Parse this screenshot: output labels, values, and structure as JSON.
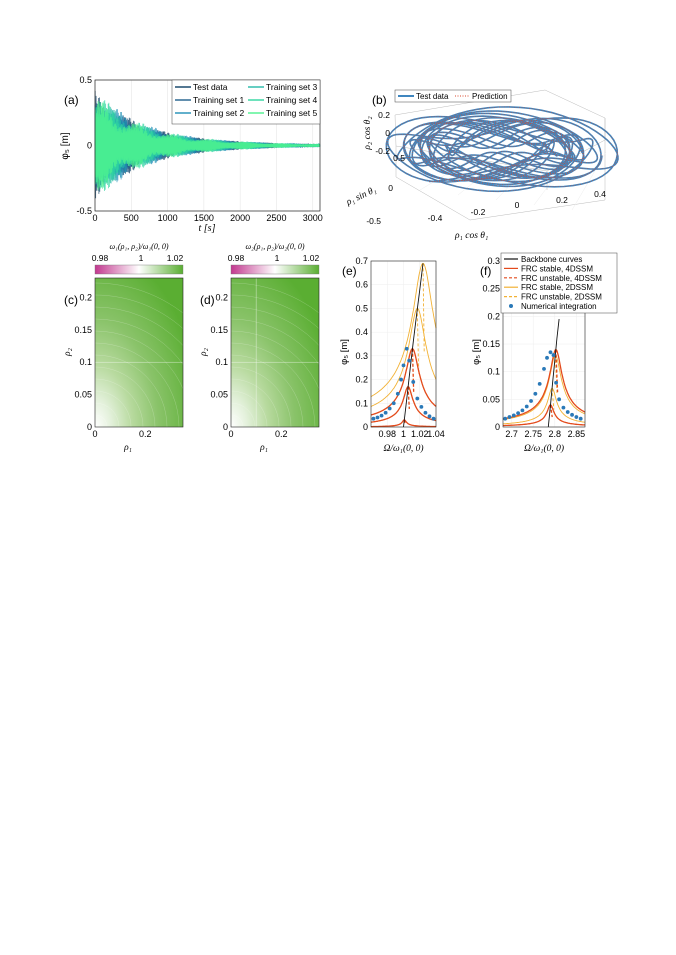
{
  "chart_data": [
    {
      "panel": "(a)",
      "type": "line",
      "ylabel": "φ₅ [m]",
      "xlabel": "t [s]",
      "xlim": [
        0,
        3100
      ],
      "ylim": [
        -0.5,
        0.5
      ],
      "xticks": [
        0,
        500,
        1000,
        1500,
        2000,
        2500,
        3000
      ],
      "yticks": [
        -0.5,
        0,
        0.5
      ],
      "legend": [
        "Test data",
        "Training set 1",
        "Training set 2",
        "Training set 3",
        "Training set 4",
        "Training set 5"
      ],
      "legend_position": "top-right",
      "series": [
        {
          "name": "Test data",
          "color": "#0b3d63",
          "amplitude": 0.42
        },
        {
          "name": "Training set 1",
          "color": "#1f5f8b",
          "amplitude": 0.4
        },
        {
          "name": "Training set 2",
          "color": "#1f8fb5",
          "amplitude": 0.44
        },
        {
          "name": "Training set 3",
          "color": "#25b9a8",
          "amplitude": 0.41
        },
        {
          "name": "Training set 4",
          "color": "#2fd6a0",
          "amplitude": 0.43
        },
        {
          "name": "Training set 5",
          "color": "#4df28f",
          "amplitude": 0.38
        }
      ],
      "envelope": {
        "t": [
          0,
          250,
          500,
          750,
          1000,
          1250,
          1500,
          1750,
          2000,
          2500,
          3000
        ],
        "value": [
          0.45,
          0.31,
          0.22,
          0.155,
          0.11,
          0.08,
          0.06,
          0.045,
          0.035,
          0.02,
          0.012
        ]
      }
    },
    {
      "panel": "(b)",
      "type": "line",
      "zlabel": "ρ₂ cos θ₂",
      "xlabel": "ρ₁ cos θ₁",
      "ylabel": "ρ₁ sin θ₁",
      "xticks": [
        -0.4,
        -0.2,
        0,
        0.2,
        0.4
      ],
      "yticks": [
        -0.5,
        0,
        0.5
      ],
      "zticks": [
        -0.2,
        0,
        0.2
      ],
      "legend": [
        "Test data",
        "Prediction"
      ],
      "legend_position": "top"
    },
    {
      "panel": "(c)",
      "type": "heatmap",
      "colorbar_label": "ω₁(ρ₁, ρ₂)/ω₁(0, 0)",
      "colorbar_ticks": [
        "0.98",
        "1",
        "1.02"
      ],
      "xlabel": "ρ₁",
      "ylabel": "ρ₂",
      "xticks": [
        0,
        0.2
      ],
      "yticks": [
        0,
        0.05,
        0.1,
        0.15,
        0.2
      ],
      "xlim": [
        0,
        0.35
      ],
      "ylim": [
        0,
        0.23
      ]
    },
    {
      "panel": "(d)",
      "type": "heatmap",
      "colorbar_label": "ω₂(ρ₁, ρ₂)/ω₂(0, 0)",
      "colorbar_ticks": [
        "0.98",
        "1",
        "1.02"
      ],
      "xlabel": "ρ₁",
      "ylabel": "ρ₂",
      "xticks": [
        0,
        0.2
      ],
      "yticks": [
        0,
        0.05,
        0.1,
        0.15,
        0.2
      ],
      "xlim": [
        0,
        0.35
      ],
      "ylim": [
        0,
        0.23
      ]
    },
    {
      "panel": "(e)",
      "type": "line",
      "xlabel": "Ω/ω₁(0, 0)",
      "ylabel": "φ₅ [m]",
      "xlim": [
        0.96,
        1.04
      ],
      "ylim": [
        0,
        0.7
      ],
      "xticks": [
        0.98,
        1,
        1.02,
        1.04
      ],
      "xtick_labels": [
        "0.98",
        "1",
        "1.02",
        "1.04"
      ],
      "yticks": [
        0,
        0.1,
        0.2,
        0.3,
        0.4,
        0.5,
        0.6,
        0.7
      ],
      "backbone": {
        "x": [
          1.0,
          1.004,
          1.008,
          1.012,
          1.016,
          1.02,
          1.024
        ],
        "y": [
          0.0,
          0.12,
          0.24,
          0.36,
          0.47,
          0.58,
          0.69
        ]
      },
      "frc_4dssm_peaks": [
        0.33,
        0.17,
        0.03
      ],
      "frc_2dssm_peaks": [
        0.69,
        0.5,
        0.33,
        0.17
      ],
      "numerical_integration": {
        "x": [
          0.963,
          0.968,
          0.973,
          0.978,
          0.983,
          0.988,
          0.993,
          0.997,
          1.0,
          1.004,
          1.007,
          1.012,
          1.017,
          1.022,
          1.027,
          1.032,
          1.037
        ],
        "y": [
          0.035,
          0.04,
          0.048,
          0.06,
          0.078,
          0.1,
          0.14,
          0.2,
          0.26,
          0.33,
          0.28,
          0.19,
          0.12,
          0.085,
          0.06,
          0.045,
          0.035
        ]
      }
    },
    {
      "panel": "(f)",
      "type": "line",
      "xlabel": "Ω/ω₁(0, 0)",
      "ylabel": "φ₅ [m]",
      "xlim": [
        2.68,
        2.87
      ],
      "ylim": [
        0,
        0.3
      ],
      "xticks": [
        2.7,
        2.75,
        2.8,
        2.85
      ],
      "xtick_labels": [
        "2.7",
        "2.75",
        "2.8",
        "2.85"
      ],
      "yticks": [
        0,
        0.05,
        0.1,
        0.15,
        0.2,
        0.25,
        0.3
      ],
      "legend": [
        "Backbone curves",
        "FRC stable, 4DSSM",
        "FRC unstable, 4DSSM",
        "FRC stable, 2DSSM",
        "FRC unstable, 2DSSM",
        "Numerical integration"
      ],
      "legend_position": "top-right",
      "backbone": {
        "x": [
          2.785,
          2.79,
          2.795,
          2.8,
          2.805,
          2.81
        ],
        "y": [
          0.0,
          0.04,
          0.08,
          0.12,
          0.16,
          0.195
        ]
      },
      "frc_4dssm_peaks": [
        0.14,
        0.04
      ],
      "frc_2dssm_peaks": [
        0.13,
        0.07
      ],
      "numerical_integration": {
        "x": [
          2.685,
          2.695,
          2.705,
          2.715,
          2.725,
          2.735,
          2.745,
          2.755,
          2.765,
          2.775,
          2.782,
          2.79,
          2.797,
          2.803,
          2.81,
          2.82,
          2.83,
          2.84,
          2.85,
          2.86
        ],
        "y": [
          0.015,
          0.018,
          0.021,
          0.025,
          0.03,
          0.037,
          0.047,
          0.06,
          0.078,
          0.105,
          0.125,
          0.135,
          0.13,
          0.08,
          0.05,
          0.035,
          0.027,
          0.022,
          0.018,
          0.015
        ]
      }
    }
  ],
  "colors": {
    "backbone": "#111111",
    "frc_4dssm": "#e34a1c",
    "frc_2dssm": "#f2b134",
    "numerical": "#2a79b8",
    "heat_low": "#c2388f",
    "heat_mid": "#ffffff",
    "heat_high": "#5aae32",
    "test_data_3d": "#2a79b8",
    "prediction_3d": "#d9472b"
  }
}
